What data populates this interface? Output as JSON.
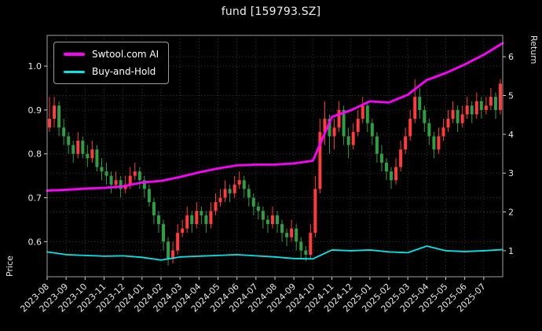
{
  "chart_data": {
    "type": "candlestick",
    "title": "fund [159793.SZ]",
    "xlabel": "",
    "ylabel_left": "Price",
    "ylabel_right": "Return",
    "background": "#000000",
    "grid": true,
    "grid_color": "#484848",
    "frame_color": "#a0a0a0",
    "text_color": "#e8e8e8",
    "legend_position": "upper left",
    "x_tick_labels": [
      "2023-08",
      "2023-09",
      "2023-10",
      "2023-11",
      "2023-12",
      "2024-01",
      "2024-02",
      "2024-03",
      "2024-04",
      "2024-05",
      "2024-06",
      "2024-07",
      "2024-08",
      "2024-09",
      "2024-10",
      "2024-11",
      "2024-12",
      "2025-01",
      "2025-02",
      "2025-03",
      "2025-04",
      "2025-05",
      "2025-06",
      "2025-07"
    ],
    "price_ticks": [
      0.6,
      0.7,
      0.8,
      0.9,
      1.0
    ],
    "return_ticks": [
      1,
      2,
      3,
      4,
      5,
      6
    ],
    "price_range": [
      0.52,
      1.07
    ],
    "return_range": [
      0.33,
      6.55
    ],
    "candle_up_color": "#ff3b3b",
    "candle_down_color": "#2f9e44",
    "candles_ohlc": [
      [
        0.86,
        0.93,
        0.85,
        0.88
      ],
      [
        0.88,
        0.93,
        0.86,
        0.91
      ],
      [
        0.91,
        0.92,
        0.84,
        0.86
      ],
      [
        0.86,
        0.88,
        0.82,
        0.84
      ],
      [
        0.84,
        0.85,
        0.8,
        0.82
      ],
      [
        0.82,
        0.83,
        0.78,
        0.8
      ],
      [
        0.8,
        0.85,
        0.79,
        0.83
      ],
      [
        0.83,
        0.84,
        0.79,
        0.8
      ],
      [
        0.8,
        0.82,
        0.77,
        0.79
      ],
      [
        0.79,
        0.83,
        0.78,
        0.81
      ],
      [
        0.81,
        0.82,
        0.76,
        0.77
      ],
      [
        0.77,
        0.79,
        0.74,
        0.76
      ],
      [
        0.76,
        0.78,
        0.73,
        0.75
      ],
      [
        0.75,
        0.76,
        0.71,
        0.73
      ],
      [
        0.73,
        0.76,
        0.72,
        0.74
      ],
      [
        0.74,
        0.75,
        0.7,
        0.72
      ],
      [
        0.72,
        0.75,
        0.71,
        0.73
      ],
      [
        0.73,
        0.77,
        0.72,
        0.75
      ],
      [
        0.75,
        0.78,
        0.74,
        0.76
      ],
      [
        0.76,
        0.77,
        0.72,
        0.74
      ],
      [
        0.74,
        0.75,
        0.7,
        0.72
      ],
      [
        0.72,
        0.73,
        0.68,
        0.69
      ],
      [
        0.69,
        0.7,
        0.64,
        0.66
      ],
      [
        0.66,
        0.67,
        0.62,
        0.64
      ],
      [
        0.64,
        0.65,
        0.58,
        0.6
      ],
      [
        0.6,
        0.61,
        0.545,
        0.56
      ],
      [
        0.56,
        0.6,
        0.55,
        0.58
      ],
      [
        0.58,
        0.64,
        0.57,
        0.62
      ],
      [
        0.62,
        0.65,
        0.61,
        0.63
      ],
      [
        0.63,
        0.68,
        0.62,
        0.66
      ],
      [
        0.66,
        0.67,
        0.62,
        0.64
      ],
      [
        0.64,
        0.69,
        0.63,
        0.67
      ],
      [
        0.67,
        0.68,
        0.64,
        0.66
      ],
      [
        0.66,
        0.67,
        0.62,
        0.64
      ],
      [
        0.64,
        0.69,
        0.63,
        0.67
      ],
      [
        0.67,
        0.71,
        0.66,
        0.69
      ],
      [
        0.69,
        0.72,
        0.68,
        0.7
      ],
      [
        0.7,
        0.74,
        0.69,
        0.72
      ],
      [
        0.72,
        0.73,
        0.69,
        0.71
      ],
      [
        0.71,
        0.75,
        0.7,
        0.73
      ],
      [
        0.73,
        0.76,
        0.72,
        0.74
      ],
      [
        0.74,
        0.75,
        0.7,
        0.72
      ],
      [
        0.72,
        0.73,
        0.68,
        0.7
      ],
      [
        0.7,
        0.71,
        0.66,
        0.68
      ],
      [
        0.68,
        0.69,
        0.65,
        0.67
      ],
      [
        0.67,
        0.68,
        0.63,
        0.65
      ],
      [
        0.65,
        0.66,
        0.62,
        0.64
      ],
      [
        0.64,
        0.68,
        0.63,
        0.66
      ],
      [
        0.66,
        0.67,
        0.62,
        0.64
      ],
      [
        0.64,
        0.65,
        0.6,
        0.62
      ],
      [
        0.62,
        0.63,
        0.59,
        0.61
      ],
      [
        0.61,
        0.65,
        0.6,
        0.63
      ],
      [
        0.63,
        0.64,
        0.58,
        0.6
      ],
      [
        0.6,
        0.61,
        0.56,
        0.58
      ],
      [
        0.58,
        0.59,
        0.555,
        0.57
      ],
      [
        0.57,
        0.64,
        0.56,
        0.62
      ],
      [
        0.62,
        0.75,
        0.61,
        0.72
      ],
      [
        0.72,
        0.88,
        0.71,
        0.85
      ],
      [
        0.85,
        0.92,
        0.82,
        0.88
      ],
      [
        0.88,
        0.89,
        0.8,
        0.84
      ],
      [
        0.84,
        0.88,
        0.81,
        0.86
      ],
      [
        0.86,
        0.92,
        0.85,
        0.9
      ],
      [
        0.9,
        0.91,
        0.82,
        0.84
      ],
      [
        0.84,
        0.86,
        0.79,
        0.82
      ],
      [
        0.82,
        0.87,
        0.81,
        0.85
      ],
      [
        0.85,
        0.9,
        0.84,
        0.88
      ],
      [
        0.88,
        0.93,
        0.87,
        0.91
      ],
      [
        0.91,
        0.92,
        0.85,
        0.87
      ],
      [
        0.87,
        0.88,
        0.82,
        0.84
      ],
      [
        0.84,
        0.85,
        0.78,
        0.8
      ],
      [
        0.8,
        0.82,
        0.76,
        0.78
      ],
      [
        0.78,
        0.79,
        0.74,
        0.76
      ],
      [
        0.76,
        0.77,
        0.72,
        0.74
      ],
      [
        0.74,
        0.79,
        0.73,
        0.77
      ],
      [
        0.77,
        0.83,
        0.76,
        0.81
      ],
      [
        0.81,
        0.86,
        0.8,
        0.84
      ],
      [
        0.84,
        0.9,
        0.83,
        0.88
      ],
      [
        0.88,
        0.97,
        0.87,
        0.93
      ],
      [
        0.93,
        0.95,
        0.88,
        0.9
      ],
      [
        0.9,
        0.91,
        0.85,
        0.87
      ],
      [
        0.87,
        0.88,
        0.82,
        0.84
      ],
      [
        0.84,
        0.85,
        0.79,
        0.81
      ],
      [
        0.81,
        0.86,
        0.8,
        0.84
      ],
      [
        0.84,
        0.88,
        0.83,
        0.86
      ],
      [
        0.86,
        0.9,
        0.85,
        0.88
      ],
      [
        0.88,
        0.92,
        0.87,
        0.9
      ],
      [
        0.9,
        0.91,
        0.85,
        0.87
      ],
      [
        0.87,
        0.91,
        0.86,
        0.89
      ],
      [
        0.89,
        0.93,
        0.88,
        0.91
      ],
      [
        0.91,
        0.92,
        0.87,
        0.89
      ],
      [
        0.89,
        0.94,
        0.88,
        0.92
      ],
      [
        0.92,
        0.93,
        0.88,
        0.9
      ],
      [
        0.9,
        0.93,
        0.89,
        0.91
      ],
      [
        0.91,
        0.95,
        0.9,
        0.93
      ],
      [
        0.93,
        0.94,
        0.88,
        0.9
      ],
      [
        0.9,
        0.97,
        0.89,
        0.96
      ]
    ],
    "series": [
      {
        "name": "Swtool.com AI",
        "axis": "return",
        "color": "#ff00ff",
        "width": 2.8,
        "values": [
          2.55,
          2.57,
          2.6,
          2.62,
          2.66,
          2.76,
          2.8,
          2.9,
          3.02,
          3.12,
          3.2,
          3.22,
          3.22,
          3.25,
          3.32,
          4.45,
          4.62,
          4.85,
          4.82,
          5.02,
          5.4,
          5.58,
          5.8,
          6.05,
          6.35
        ]
      },
      {
        "name": "Buy-and-Hold",
        "axis": "return",
        "color": "#00e5e5",
        "width": 1.8,
        "values": [
          0.97,
          0.9,
          0.88,
          0.86,
          0.87,
          0.83,
          0.76,
          0.84,
          0.86,
          0.88,
          0.9,
          0.87,
          0.84,
          0.8,
          0.79,
          1.02,
          1.0,
          1.02,
          0.97,
          0.95,
          1.12,
          1.0,
          0.98,
          1.0,
          1.03
        ]
      }
    ]
  }
}
